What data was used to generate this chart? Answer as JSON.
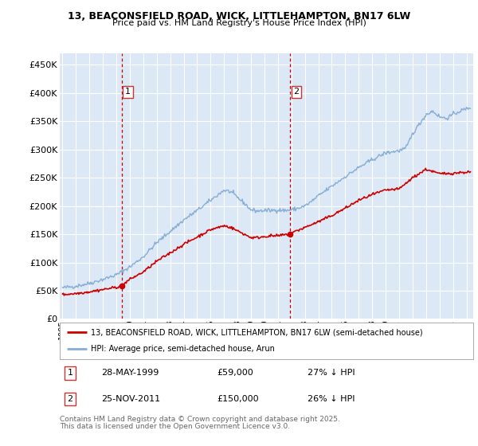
{
  "title_line1": "13, BEACONSFIELD ROAD, WICK, LITTLEHAMPTON, BN17 6LW",
  "title_line2": "Price paid vs. HM Land Registry's House Price Index (HPI)",
  "ylabel_ticks": [
    "£0",
    "£50K",
    "£100K",
    "£150K",
    "£200K",
    "£250K",
    "£300K",
    "£350K",
    "£400K",
    "£450K"
  ],
  "ytick_values": [
    0,
    50000,
    100000,
    150000,
    200000,
    250000,
    300000,
    350000,
    400000,
    450000
  ],
  "ylim": [
    0,
    470000
  ],
  "xlim_start": 1994.8,
  "xlim_end": 2025.5,
  "sale1_date": "28-MAY-1999",
  "sale1_price": 59000,
  "sale1_x": 1999.41,
  "sale1_label": "1",
  "sale2_date": "25-NOV-2011",
  "sale2_price": 150000,
  "sale2_x": 2011.9,
  "sale2_label": "2",
  "legend_property": "13, BEACONSFIELD ROAD, WICK, LITTLEHAMPTON, BN17 6LW (semi-detached house)",
  "legend_hpi": "HPI: Average price, semi-detached house, Arun",
  "footnote_line1": "Contains HM Land Registry data © Crown copyright and database right 2025.",
  "footnote_line2": "This data is licensed under the Open Government Licence v3.0.",
  "property_color": "#cc0000",
  "hpi_color": "#85aed4",
  "background_color": "#dce8f5",
  "grid_color": "#ffffff",
  "dashed_line_color": "#cc0000",
  "sale1_pct": "27% ↓ HPI",
  "sale2_pct": "26% ↓ HPI"
}
